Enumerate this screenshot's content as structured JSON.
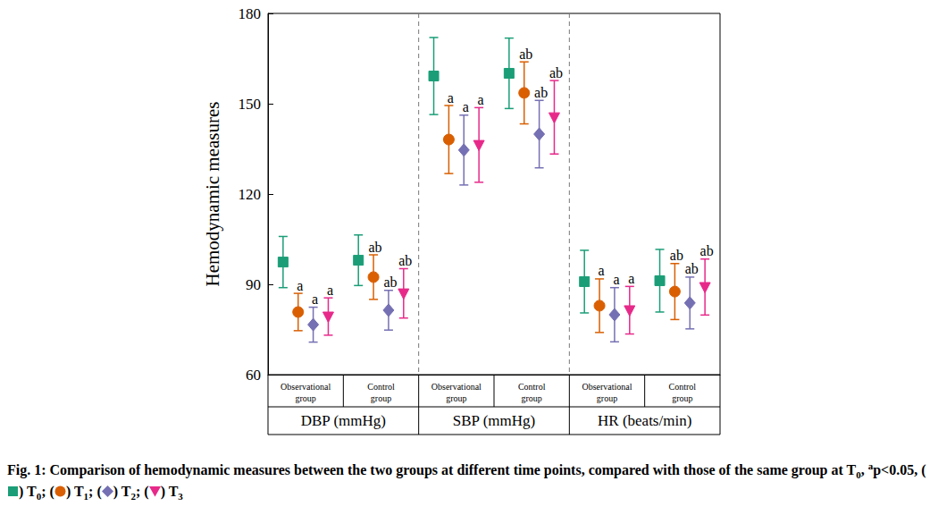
{
  "chart_data": {
    "type": "errorbar",
    "y_label": "Hemodynamic measures",
    "categories": [
      "Observational\ngroup",
      "Control\ngroup",
      "Observational\ngroup",
      "Control\ngroup",
      "Observational\ngroup",
      "Control\ngroup"
    ],
    "groups": [
      "DBP (mmHg)",
      "SBP (mmHg)",
      "HR (beats/min)"
    ],
    "ylim": [
      60,
      180
    ],
    "yticks": [
      60,
      90,
      120,
      150,
      180
    ],
    "grid": false,
    "series": [
      {
        "name": "T0",
        "color": "#1b9e77",
        "marker": "square",
        "values": [
          97.4,
          98.0,
          159.2,
          160.1,
          90.9,
          91.2
        ],
        "errors": [
          8.5,
          8.4,
          12.8,
          11.7,
          10.4,
          10.4
        ]
      },
      {
        "name": "T1",
        "color": "#d95f02",
        "marker": "circle",
        "values": [
          80.8,
          92.4,
          138.1,
          153.6,
          82.9,
          87.6
        ],
        "errors": [
          6.2,
          7.4,
          11.3,
          10.3,
          8.9,
          9.3
        ],
        "annotations": [
          "a",
          "ab",
          "a",
          "ab",
          "a",
          "ab"
        ]
      },
      {
        "name": "T2",
        "color": "#7570b3",
        "marker": "diamond",
        "values": [
          76.6,
          81.4,
          134.6,
          139.9,
          79.9,
          83.8
        ],
        "errors": [
          5.8,
          6.6,
          11.6,
          11.2,
          9.0,
          8.6
        ],
        "annotations": [
          "a",
          "ab",
          "a",
          "ab",
          "a",
          "ab"
        ]
      },
      {
        "name": "T3",
        "color": "#e7298a",
        "marker": "triangle-down",
        "values": [
          79.3,
          87.0,
          136.3,
          145.5,
          81.4,
          89.1
        ],
        "errors": [
          6.2,
          8.2,
          12.4,
          12.2,
          7.9,
          9.3
        ],
        "annotations": [
          "a",
          "ab",
          "a",
          "ab",
          "a",
          "ab"
        ]
      }
    ],
    "caption": [
      {
        "text": "Fig. 1: Comparison of hemodynamic measures between the two groups at different time points, compared with those of the same group at T"
      },
      {
        "text": "0",
        "sub": true
      },
      {
        "text": ", "
      },
      {
        "text": "a",
        "sup": true
      },
      {
        "text": "p<0.05, ("
      },
      {
        "marker": "T0"
      },
      {
        "text": ") T"
      },
      {
        "text": "0",
        "sub": true
      },
      {
        "text": "; ("
      },
      {
        "marker": "T1"
      },
      {
        "text": ") T"
      },
      {
        "text": "1",
        "sub": true
      },
      {
        "text": "; ("
      },
      {
        "marker": "T2"
      },
      {
        "text": ") T"
      },
      {
        "text": "2",
        "sub": true
      },
      {
        "text": "; ("
      },
      {
        "marker": "T3"
      },
      {
        "text": ") T"
      },
      {
        "text": "3",
        "sub": true
      }
    ]
  }
}
